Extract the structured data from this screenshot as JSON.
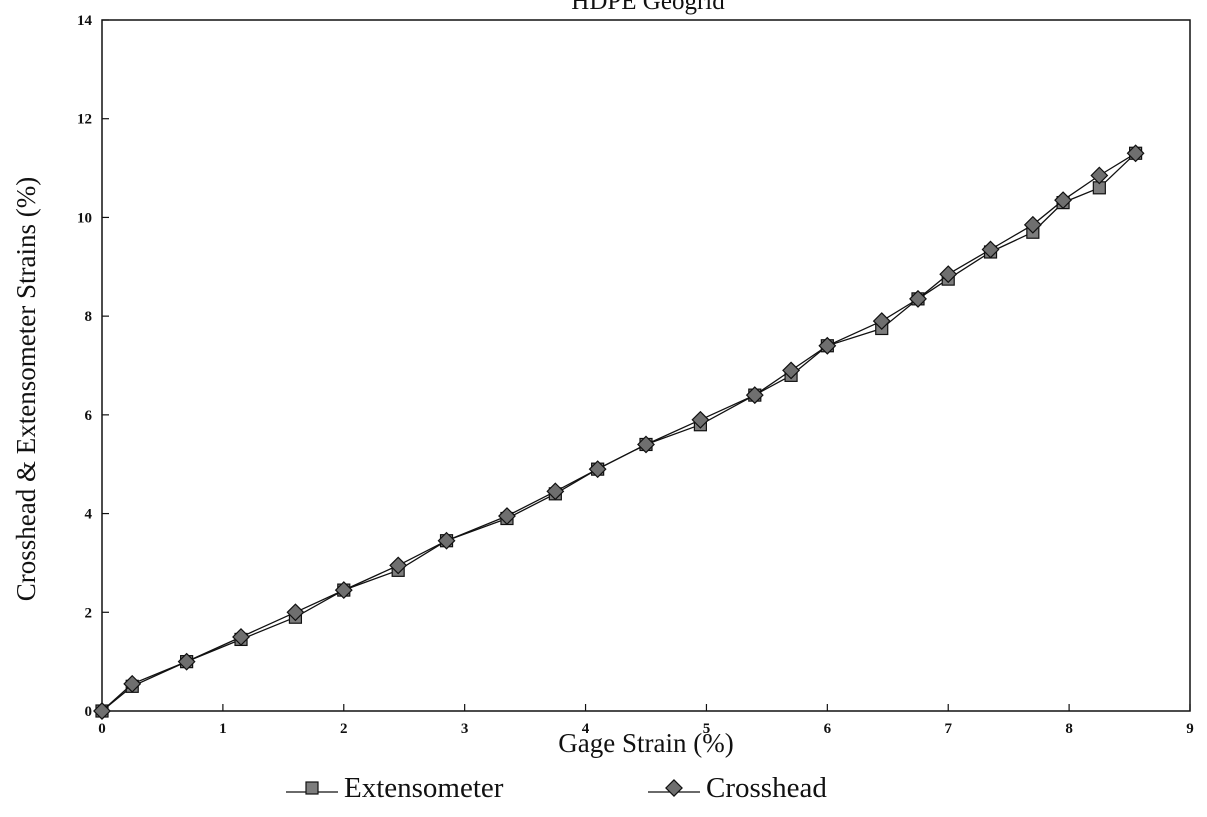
{
  "chart_data": {
    "type": "line",
    "title": "HDPE Geogrid",
    "xlabel": "Gage Strain (%)",
    "ylabel": "Crosshead & Extensometer Strains (%)",
    "xlim": [
      0,
      9
    ],
    "ylim": [
      0,
      14
    ],
    "xticks": [
      "0",
      "1",
      "2",
      "3",
      "4",
      "5",
      "6",
      "7",
      "8",
      "9"
    ],
    "yticks": [
      "0",
      "2",
      "4",
      "6",
      "8",
      "10",
      "12",
      "14"
    ],
    "grid": false,
    "legend_position": "bottom",
    "series": [
      {
        "name": "Extensometer",
        "marker": "square",
        "points": [
          [
            0,
            0
          ],
          [
            0.25,
            0.5
          ],
          [
            0.7,
            1
          ],
          [
            1.15,
            1.45
          ],
          [
            1.6,
            1.9
          ],
          [
            2,
            2.45
          ],
          [
            2.45,
            2.85
          ],
          [
            2.85,
            3.45
          ],
          [
            3.35,
            3.9
          ],
          [
            3.75,
            4.4
          ],
          [
            4.1,
            4.9
          ],
          [
            4.5,
            5.4
          ],
          [
            4.95,
            5.8
          ],
          [
            5.4,
            6.4
          ],
          [
            5.7,
            6.8
          ],
          [
            6,
            7.4
          ],
          [
            6.45,
            7.75
          ],
          [
            6.75,
            8.35
          ],
          [
            7,
            8.75
          ],
          [
            7.35,
            9.3
          ],
          [
            7.7,
            9.7
          ],
          [
            7.95,
            10.3
          ],
          [
            8.25,
            10.6
          ],
          [
            8.55,
            11.3
          ]
        ]
      },
      {
        "name": "Crosshead",
        "marker": "diamond",
        "points": [
          [
            0,
            0
          ],
          [
            0.25,
            0.55
          ],
          [
            0.7,
            1
          ],
          [
            1.15,
            1.5
          ],
          [
            1.6,
            2
          ],
          [
            2,
            2.45
          ],
          [
            2.45,
            2.95
          ],
          [
            2.85,
            3.45
          ],
          [
            3.35,
            3.95
          ],
          [
            3.75,
            4.45
          ],
          [
            4.1,
            4.9
          ],
          [
            4.5,
            5.4
          ],
          [
            4.95,
            5.9
          ],
          [
            5.4,
            6.4
          ],
          [
            5.7,
            6.9
          ],
          [
            6,
            7.4
          ],
          [
            6.45,
            7.9
          ],
          [
            6.75,
            8.35
          ],
          [
            7,
            8.85
          ],
          [
            7.35,
            9.35
          ],
          [
            7.7,
            9.85
          ],
          [
            7.95,
            10.35
          ],
          [
            8.25,
            10.85
          ],
          [
            8.55,
            11.3
          ]
        ]
      }
    ]
  }
}
